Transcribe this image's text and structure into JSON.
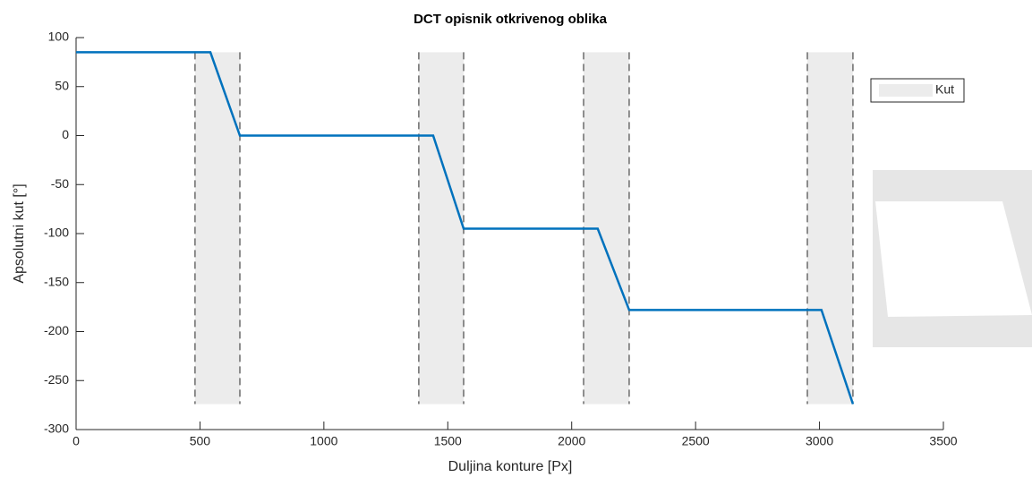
{
  "chart_data": {
    "type": "line",
    "title": "DCT opisnik otkrivenog oblika",
    "x_label": "Duljina konture [Px]",
    "y_label": "Apsolutni kut [°]",
    "x": [
      0,
      542,
      661,
      1441,
      1564,
      2105,
      2232,
      3008,
      3135
    ],
    "series": [
      {
        "name": null,
        "color": "#0072bd",
        "values": [
          85,
          85,
          0,
          0,
          -95,
          -95,
          -178,
          -178,
          -274
        ]
      }
    ],
    "regions": {
      "name": "Kut",
      "color": "#ececec",
      "spans": [
        [
          480,
          661
        ],
        [
          1383,
          1564
        ],
        [
          2048,
          2232
        ],
        [
          2951,
          3135
        ]
      ]
    },
    "xlim": [
      0,
      3500
    ],
    "xticks": [
      0,
      500,
      1000,
      1500,
      2000,
      2500,
      3000,
      3500
    ],
    "ylim": [
      -300,
      100
    ],
    "yticks": [
      -300,
      -250,
      -200,
      -150,
      -100,
      -50,
      0,
      50,
      100
    ],
    "legend": "top-right"
  }
}
